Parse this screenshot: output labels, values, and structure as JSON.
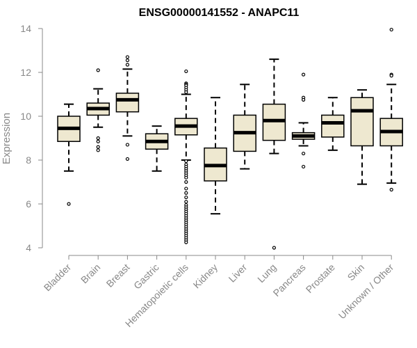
{
  "chart_data": {
    "type": "box",
    "title": "ENSG00000141552 - ANAPC11",
    "xlabel": "",
    "ylabel": "Expression",
    "ylim": [
      4,
      14
    ],
    "yticks": [
      4,
      6,
      8,
      10,
      12,
      14
    ],
    "box_fill": "#EEE8D0",
    "categories": [
      "Bladder",
      "Brain",
      "Breast",
      "Gastric",
      "Hematopoietic cells",
      "Kidney",
      "Liver",
      "Lung",
      "Pancreas",
      "Prostate",
      "Skin",
      "Unknown / Other"
    ],
    "boxes": [
      {
        "category": "Bladder",
        "whisker_low": 7.5,
        "q1": 8.85,
        "median": 9.45,
        "q3": 10.0,
        "whisker_high": 10.55,
        "outliers": [
          6.0
        ]
      },
      {
        "category": "Brain",
        "whisker_low": 9.5,
        "q1": 10.05,
        "median": 10.35,
        "q3": 10.6,
        "whisker_high": 11.25,
        "outliers": [
          12.1,
          9.0,
          8.85,
          8.6,
          8.45
        ]
      },
      {
        "category": "Breast",
        "whisker_low": 9.1,
        "q1": 10.2,
        "median": 10.75,
        "q3": 11.05,
        "whisker_high": 12.15,
        "outliers": [
          12.7,
          12.55,
          12.35,
          8.7,
          8.05
        ]
      },
      {
        "category": "Gastric",
        "whisker_low": 7.5,
        "q1": 8.5,
        "median": 8.85,
        "q3": 9.2,
        "whisker_high": 9.55,
        "outliers": []
      },
      {
        "category": "Hematopoietic cells",
        "whisker_low": 8.0,
        "q1": 9.15,
        "median": 9.55,
        "q3": 9.9,
        "whisker_high": 11.0,
        "outliers": [
          12.05,
          11.5,
          11.45,
          11.4,
          11.3,
          11.2,
          11.1,
          7.95,
          7.8,
          7.7,
          7.6,
          7.5,
          7.4,
          7.3,
          7.2,
          7.0,
          6.7,
          6.5,
          6.3,
          6.1,
          5.95,
          5.85,
          5.75,
          5.65,
          5.55,
          5.45,
          5.35,
          5.25,
          5.15,
          5.05,
          4.95,
          4.85,
          4.75,
          4.65,
          4.55,
          4.45,
          4.35,
          4.25
        ]
      },
      {
        "category": "Kidney",
        "whisker_low": 5.55,
        "q1": 7.05,
        "median": 7.75,
        "q3": 8.55,
        "whisker_high": 10.85,
        "outliers": []
      },
      {
        "category": "Liver",
        "whisker_low": 7.6,
        "q1": 8.4,
        "median": 9.25,
        "q3": 10.05,
        "whisker_high": 11.45,
        "outliers": []
      },
      {
        "category": "Lung",
        "whisker_low": 8.3,
        "q1": 8.9,
        "median": 9.8,
        "q3": 10.55,
        "whisker_high": 12.6,
        "outliers": [
          4.0
        ]
      },
      {
        "category": "Pancreas",
        "whisker_low": 8.65,
        "q1": 8.95,
        "median": 9.1,
        "q3": 9.25,
        "whisker_high": 9.7,
        "outliers": [
          11.9,
          10.85,
          10.75,
          8.3,
          7.7
        ]
      },
      {
        "category": "Prostate",
        "whisker_low": 8.45,
        "q1": 9.05,
        "median": 9.7,
        "q3": 10.05,
        "whisker_high": 10.85,
        "outliers": []
      },
      {
        "category": "Skin",
        "whisker_low": 6.9,
        "q1": 8.65,
        "median": 10.25,
        "q3": 10.85,
        "whisker_high": 11.2,
        "outliers": []
      },
      {
        "category": "Unknown / Other",
        "whisker_low": 6.95,
        "q1": 8.65,
        "median": 9.3,
        "q3": 9.9,
        "whisker_high": 11.45,
        "outliers": [
          13.95,
          11.9,
          11.85,
          6.65
        ]
      }
    ]
  }
}
